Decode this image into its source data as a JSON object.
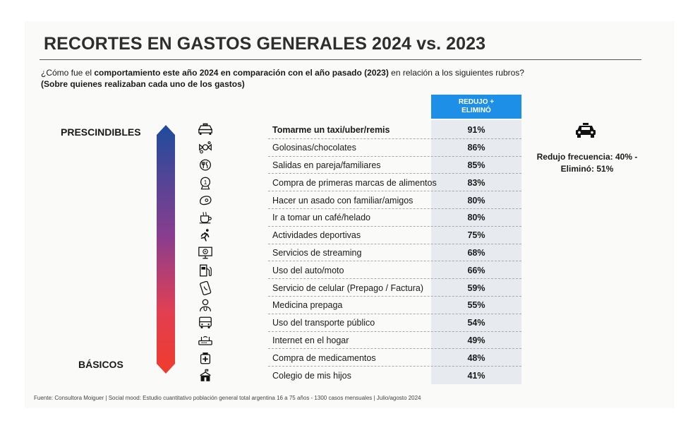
{
  "title": "RECORTES EN GASTOS GENERALES 2024 vs. 2023",
  "question": {
    "pre": "¿Cómo fue el ",
    "bold": "comportamiento este año 2024 en comparación con el año pasado (2023)",
    "post": " en relación a los siguientes rubros?",
    "sub": "(Sobre quienes realizaban cada uno de los gastos)"
  },
  "scale": {
    "top": "PRESCINDIBLES",
    "bottom": "BÁSICOS"
  },
  "chart_data": {
    "type": "table",
    "column_header_line1": "REDUJO +",
    "column_header_line2": "ELIMINÓ",
    "rows": [
      {
        "label": "Tomarme un taxi/uber/remis",
        "value": "91%",
        "icon": "taxi-icon"
      },
      {
        "label": "Golosinas/chocolates",
        "value": "86%",
        "icon": "candy-icon"
      },
      {
        "label": "Salidas en pareja/familiares",
        "value": "85%",
        "icon": "restaurant-icon"
      },
      {
        "label": "Compra de primeras marcas de alimentos",
        "value": "83%",
        "icon": "first-brand-medal-icon"
      },
      {
        "label": "Hacer un asado con familiar/amigos",
        "value": "80%",
        "icon": "steak-icon"
      },
      {
        "label": "Ir a tomar un café/helado",
        "value": "80%",
        "icon": "coffee-icon"
      },
      {
        "label": "Actividades deportivas",
        "value": "75%",
        "icon": "running-icon"
      },
      {
        "label": "Servicios de streaming",
        "value": "68%",
        "icon": "streaming-monitor-icon"
      },
      {
        "label": "Uso del auto/moto",
        "value": "66%",
        "icon": "fuel-pump-icon"
      },
      {
        "label": "Servicio de celular (Prepago / Factura)",
        "value": "59%",
        "icon": "mobile-phone-icon"
      },
      {
        "label": "Medicina prepaga",
        "value": "55%",
        "icon": "doctor-icon"
      },
      {
        "label": "Uso del transporte público",
        "value": "54%",
        "icon": "bus-icon"
      },
      {
        "label": "Internet en el hogar",
        "value": "49%",
        "icon": "router-icon"
      },
      {
        "label": "Compra de medicamentos",
        "value": "48%",
        "icon": "medicine-icon"
      },
      {
        "label": "Colegio de mis hijos",
        "value": "41%",
        "icon": "school-icon"
      }
    ]
  },
  "note": {
    "icon": "taxi-icon",
    "line1": "Redujo frecuencia: 40% -",
    "line2": "Eliminó: 51%"
  },
  "source": "Fuente: Consultora Moiguer | Social mood: Estudio cuantitativo población general total argentina 16 a 75 años - 1300 casos mensuales | Julio/agosto 2024",
  "colors": {
    "header_blue": "#1e8fe6",
    "arrow_top": "#1f4b9c",
    "arrow_bottom": "#ef3b2c",
    "value_band": "#e7ebef"
  }
}
